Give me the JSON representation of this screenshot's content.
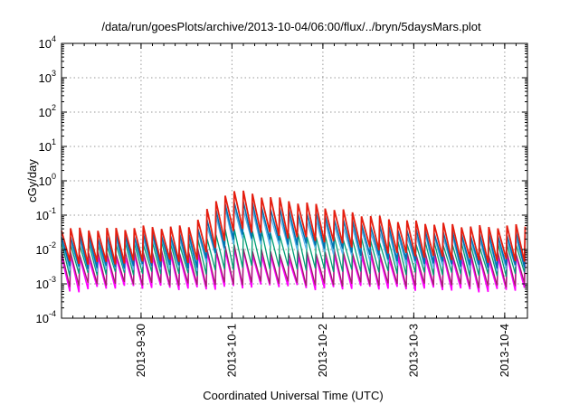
{
  "chart_data": {
    "type": "line",
    "title": "/data/run/goesPlots/archive/2013-10-04/06:00/flux/../bryn/5daysMars.plot",
    "xlabel": "Coordinated Universal Time (UTC)",
    "ylabel": "cGy/day",
    "yscale": "log",
    "ylim": [
      0.0001,
      10000
    ],
    "xlim": [
      "2013-09-29T03:00",
      "2013-10-04T06:00"
    ],
    "grid": true,
    "x_ticks": [
      "2013-9-30",
      "2013-10-1",
      "2013-10-2",
      "2013-10-3",
      "2013-10-4"
    ],
    "y_ticks": [
      {
        "base": "10",
        "exp": "-4"
      },
      {
        "base": "10",
        "exp": "-3"
      },
      {
        "base": "10",
        "exp": "-2"
      },
      {
        "base": "10",
        "exp": "-1"
      },
      {
        "base": "10",
        "exp": "0"
      },
      {
        "base": "10",
        "exp": "1"
      },
      {
        "base": "10",
        "exp": "2"
      },
      {
        "base": "10",
        "exp": "3"
      },
      {
        "base": "10",
        "exp": "4"
      }
    ],
    "series": [
      {
        "color": "#ff00ff",
        "width": 1.6,
        "peak_values": [
          0.0065,
          0.006,
          0.007,
          0.0065,
          0.011,
          0.006,
          0.0065,
          0.007,
          0.006,
          0.0065,
          0.0055,
          0.007
        ],
        "trough_values": [
          0.0006,
          0.0008,
          0.0008,
          0.0007,
          0.0008,
          0.0009,
          0.0007,
          0.0008,
          0.0007,
          0.0007,
          0.0006,
          0.0008
        ]
      },
      {
        "color": "#a0206a",
        "width": 1.3,
        "peak_values": [
          0.008,
          0.008,
          0.009,
          0.0085,
          0.013,
          0.008,
          0.0085,
          0.009,
          0.008,
          0.0085,
          0.007,
          0.009
        ],
        "trough_values": [
          0.0009,
          0.001,
          0.001,
          0.0009,
          0.001,
          0.0011,
          0.0009,
          0.001,
          0.0009,
          0.0009,
          0.0008,
          0.001
        ]
      },
      {
        "color": "#009e73",
        "width": 1.3,
        "peak_values": [
          0.015,
          0.014,
          0.016,
          0.015,
          0.04,
          0.03,
          0.025,
          0.02,
          0.016,
          0.015,
          0.013,
          0.016
        ],
        "trough_values": [
          0.0018,
          0.002,
          0.002,
          0.0018,
          0.003,
          0.003,
          0.0025,
          0.0022,
          0.002,
          0.0019,
          0.0017,
          0.002
        ]
      },
      {
        "color": "#56b4e9",
        "width": 1.3,
        "peak_values": [
          0.02,
          0.018,
          0.022,
          0.02,
          0.18,
          0.1,
          0.07,
          0.04,
          0.028,
          0.024,
          0.02,
          0.022
        ],
        "trough_values": [
          0.0025,
          0.0025,
          0.003,
          0.0025,
          0.02,
          0.012,
          0.009,
          0.005,
          0.0035,
          0.003,
          0.0025,
          0.003
        ]
      },
      {
        "color": "#0072b2",
        "width": 1.6,
        "peak_values": [
          0.025,
          0.024,
          0.028,
          0.026,
          0.28,
          0.16,
          0.11,
          0.06,
          0.04,
          0.032,
          0.026,
          0.03
        ],
        "trough_values": [
          0.003,
          0.003,
          0.0035,
          0.003,
          0.025,
          0.016,
          0.012,
          0.007,
          0.0045,
          0.0038,
          0.003,
          0.0035
        ]
      },
      {
        "color": "#e51e10",
        "width": 1.8,
        "peak_values": [
          0.04,
          0.038,
          0.045,
          0.045,
          0.55,
          0.32,
          0.2,
          0.11,
          0.07,
          0.055,
          0.045,
          0.05
        ],
        "trough_values": [
          0.004,
          0.004,
          0.0045,
          0.0045,
          0.04,
          0.025,
          0.018,
          0.011,
          0.007,
          0.0055,
          0.0045,
          0.005
        ]
      }
    ]
  }
}
